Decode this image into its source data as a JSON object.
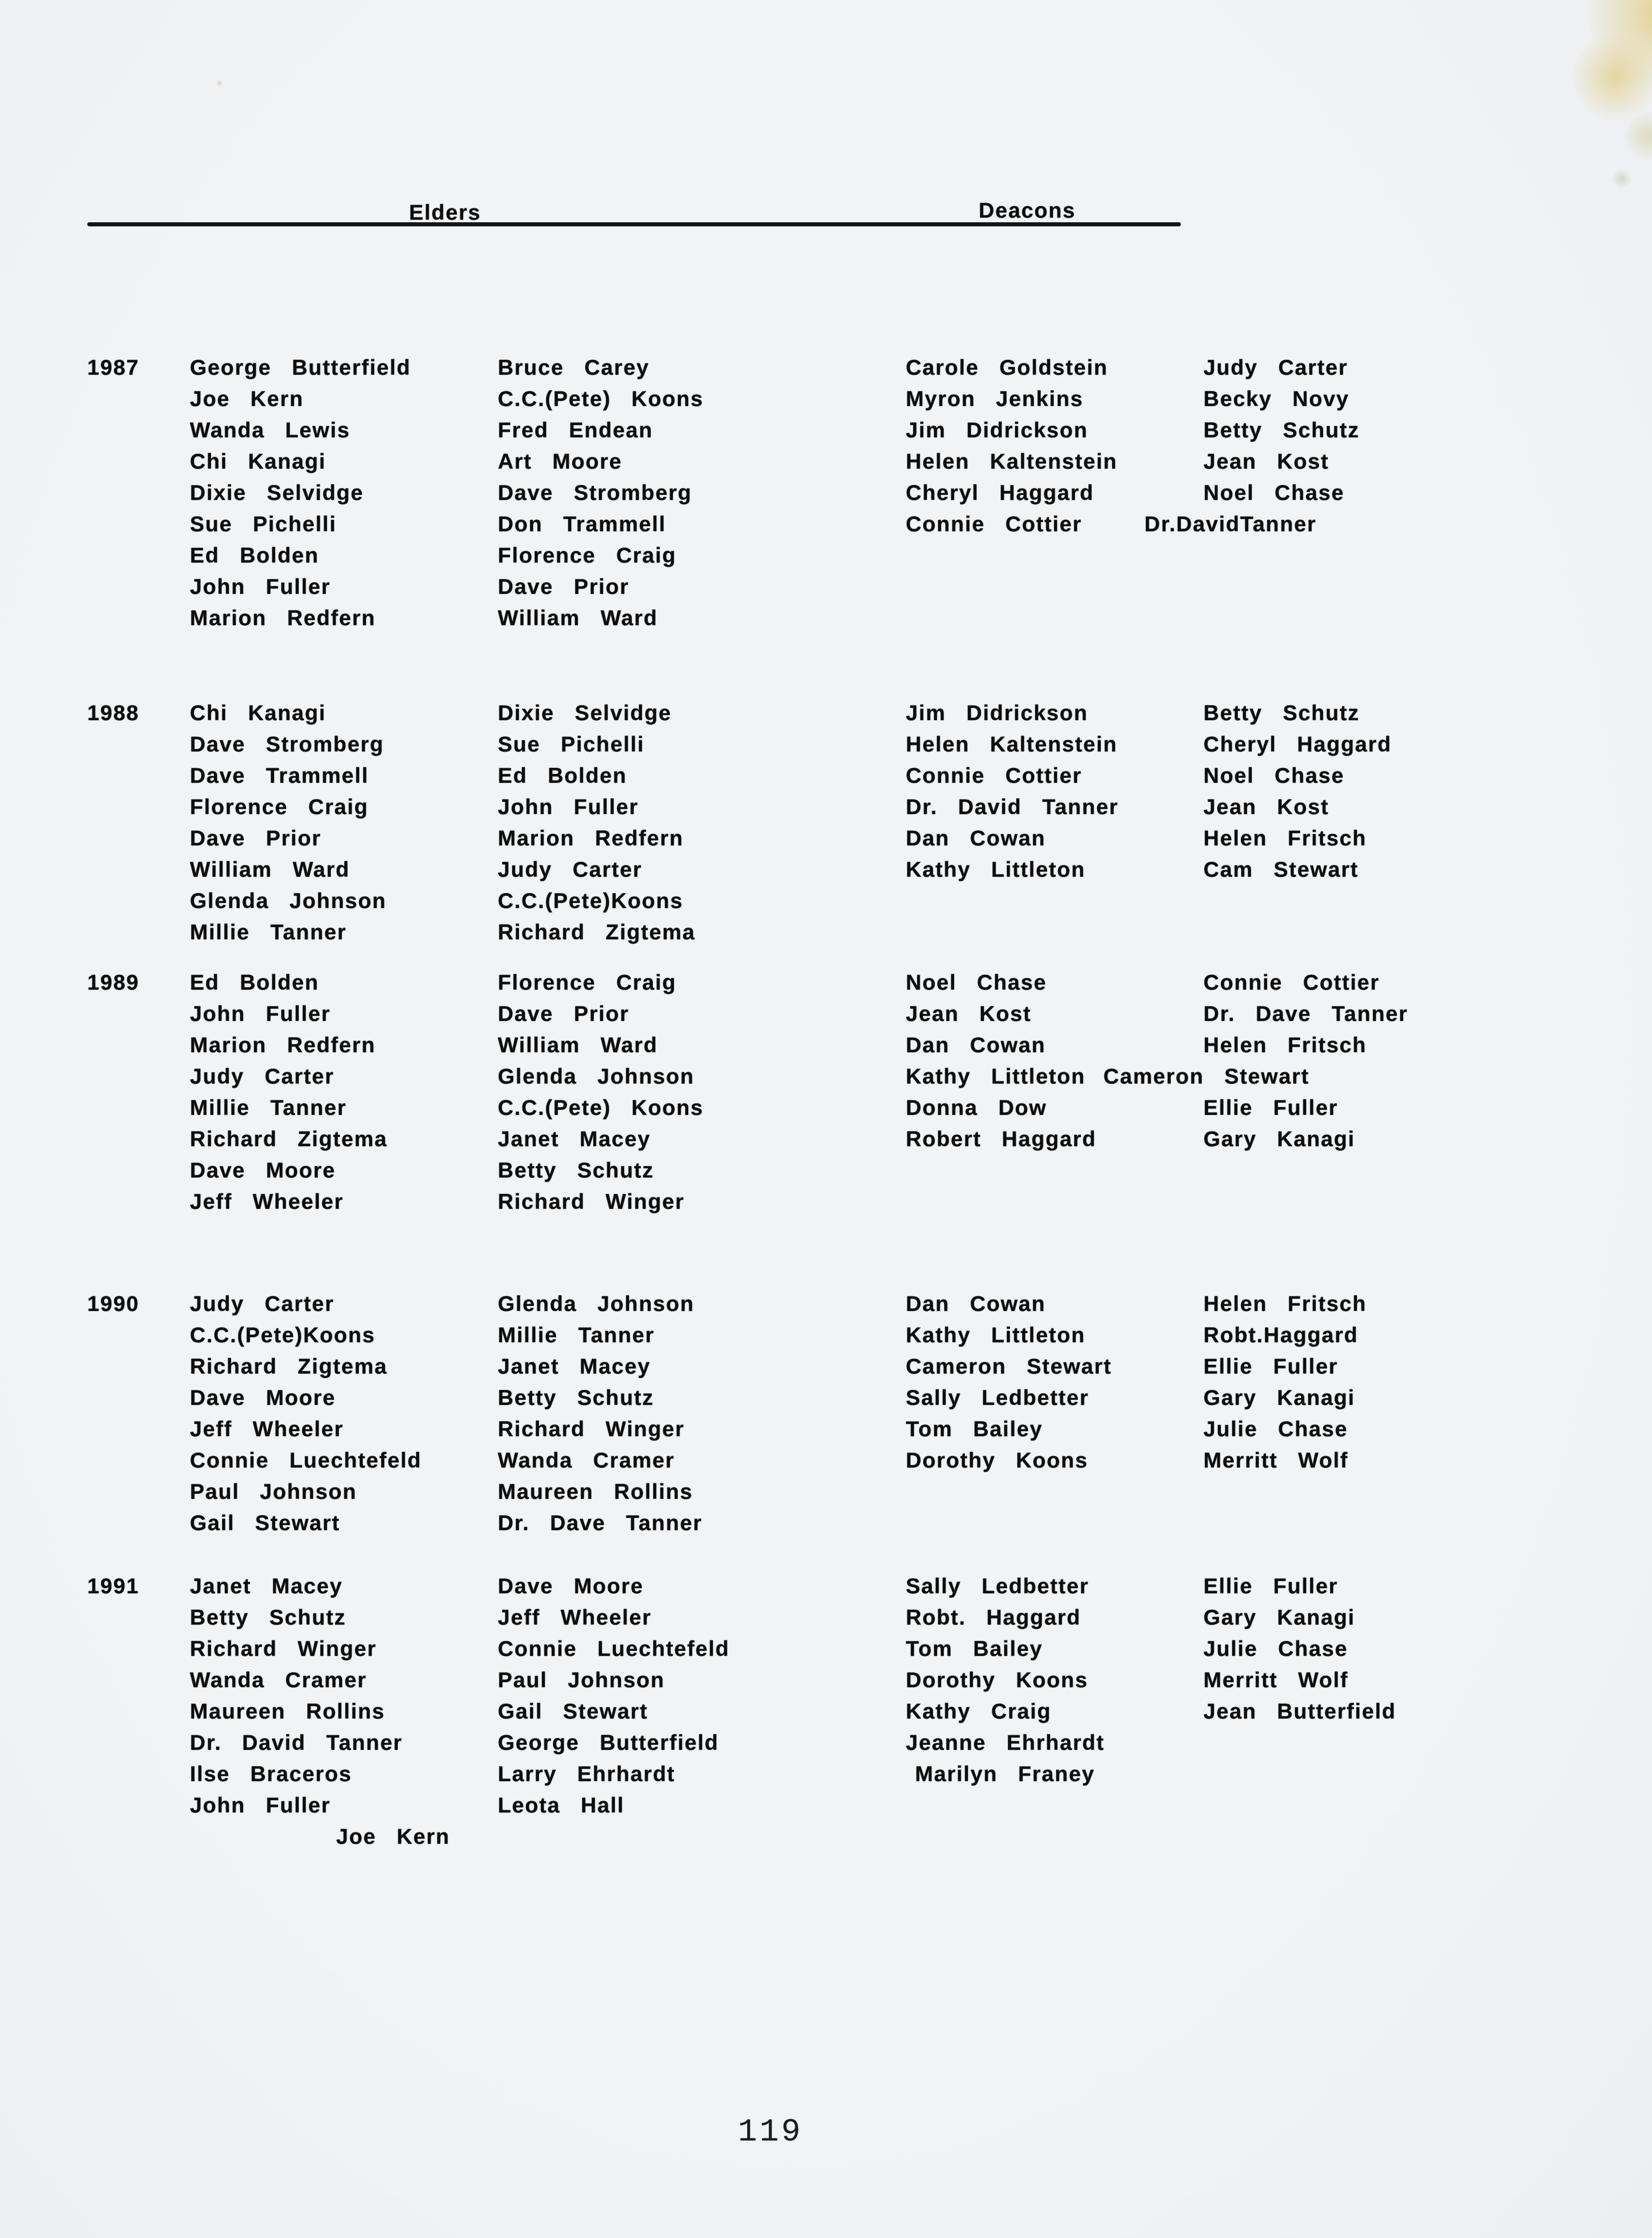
{
  "page": {
    "header": {
      "elders": "Elders",
      "deacons": "Deacons"
    },
    "page_number": "119",
    "colors": {
      "paper": "#f1f3f5",
      "ink": "#0d0d0d",
      "stain": "#e2d08c"
    }
  },
  "sections": [
    {
      "year": "1987",
      "elders": [
        [
          "George Butterfield",
          "Joe Kern",
          "Wanda Lewis",
          "Chi Kanagi",
          "Dixie Selvidge",
          "Sue Pichelli",
          "Ed Bolden",
          "John Fuller",
          "Marion Redfern"
        ],
        [
          "Bruce Carey",
          "C.C.(Pete) Koons",
          "Fred Endean",
          "Art Moore",
          "Dave Stromberg",
          "Don Trammell",
          "Florence Craig",
          "Dave Prior",
          "William Ward"
        ]
      ],
      "deacons": [
        [
          "Carole Goldstein",
          "Myron Jenkins",
          "Jim Didrickson",
          "Helen Kaltenstein",
          "Cheryl Haggard",
          "Connie Cottier"
        ],
        [
          "Judy Carter",
          "Becky Novy",
          "Betty Schutz",
          "Jean Kost",
          "Noel Chase",
          "Dr.DavidTanner"
        ]
      ]
    },
    {
      "year": "1988",
      "elders": [
        [
          "Chi Kanagi",
          "Dave Stromberg",
          "Dave Trammell",
          "Florence Craig",
          "Dave Prior",
          "William Ward",
          "Glenda Johnson",
          "Millie Tanner"
        ],
        [
          "Dixie Selvidge",
          "Sue Pichelli",
          "Ed Bolden",
          "John Fuller",
          "Marion Redfern",
          "Judy Carter",
          "C.C.(Pete)Koons",
          "Richard Zigtema"
        ]
      ],
      "deacons": [
        [
          "Jim Didrickson",
          "Helen Kaltenstein",
          "Connie Cottier",
          "Dr. David Tanner",
          "Dan Cowan",
          "Kathy Littleton"
        ],
        [
          "Betty Schutz",
          "Cheryl Haggard",
          "Noel Chase",
          "Jean Kost",
          "Helen Fritsch",
          "Cam Stewart"
        ]
      ]
    },
    {
      "year": "1989",
      "elders": [
        [
          "Ed Bolden",
          "John Fuller",
          "Marion Redfern",
          "Judy Carter",
          "Millie Tanner",
          "Richard Zigtema",
          "Dave Moore",
          "Jeff Wheeler"
        ],
        [
          "Florence Craig",
          "Dave Prior",
          "William Ward",
          "Glenda Johnson",
          "C.C.(Pete) Koons",
          "Janet Macey",
          "Betty Schutz",
          "Richard Winger"
        ]
      ],
      "deacons": [
        [
          "Noel Chase",
          "Jean Kost",
          "Dan Cowan",
          "Kathy Littleton",
          "Donna Dow",
          "Robert Haggard"
        ],
        [
          "Connie Cottier",
          "Dr. Dave Tanner",
          "Helen Fritsch",
          "Cameron Stewart",
          "Ellie Fuller",
          "Gary Kanagi"
        ]
      ]
    },
    {
      "year": "1990",
      "elders": [
        [
          "Judy Carter",
          "C.C.(Pete)Koons",
          "Richard Zigtema",
          "Dave Moore",
          "Jeff Wheeler",
          "Connie Luechtefeld",
          "Paul Johnson",
          "Gail Stewart"
        ],
        [
          "Glenda Johnson",
          "Millie Tanner",
          "Janet Macey",
          "Betty Schutz",
          "Richard Winger",
          "Wanda Cramer",
          "Maureen Rollins",
          "Dr. Dave Tanner"
        ]
      ],
      "deacons": [
        [
          "Dan Cowan",
          "Kathy Littleton",
          "Cameron Stewart",
          "Sally Ledbetter",
          "Tom Bailey",
          "Dorothy Koons"
        ],
        [
          "Helen Fritsch",
          "Robt.Haggard",
          "Ellie Fuller",
          "Gary Kanagi",
          "Julie Chase",
          "Merritt Wolf"
        ]
      ]
    },
    {
      "year": "1991",
      "elders": [
        [
          "Janet Macey",
          "Betty Schutz",
          "Richard Winger",
          "Wanda Cramer",
          "Maureen Rollins",
          "Dr. David Tanner",
          "Ilse Braceros",
          "John Fuller"
        ],
        [
          "Dave Moore",
          "Jeff Wheeler",
          "Connie Luechtefeld",
          "Paul Johnson",
          "Gail Stewart",
          "George Butterfield",
          "Larry Ehrhardt",
          "Leota Hall"
        ]
      ],
      "elders_extra": "Joe Kern",
      "deacons": [
        [
          "Sally Ledbetter",
          "Robt. Haggard",
          "Tom Bailey",
          "Dorothy Koons",
          "Kathy Craig",
          "Jeanne Ehrhardt",
          "Marilyn Franey"
        ],
        [
          "Ellie Fuller",
          "Gary Kanagi",
          "Julie Chase",
          "Merritt Wolf",
          "Jean Butterfield"
        ]
      ]
    }
  ]
}
